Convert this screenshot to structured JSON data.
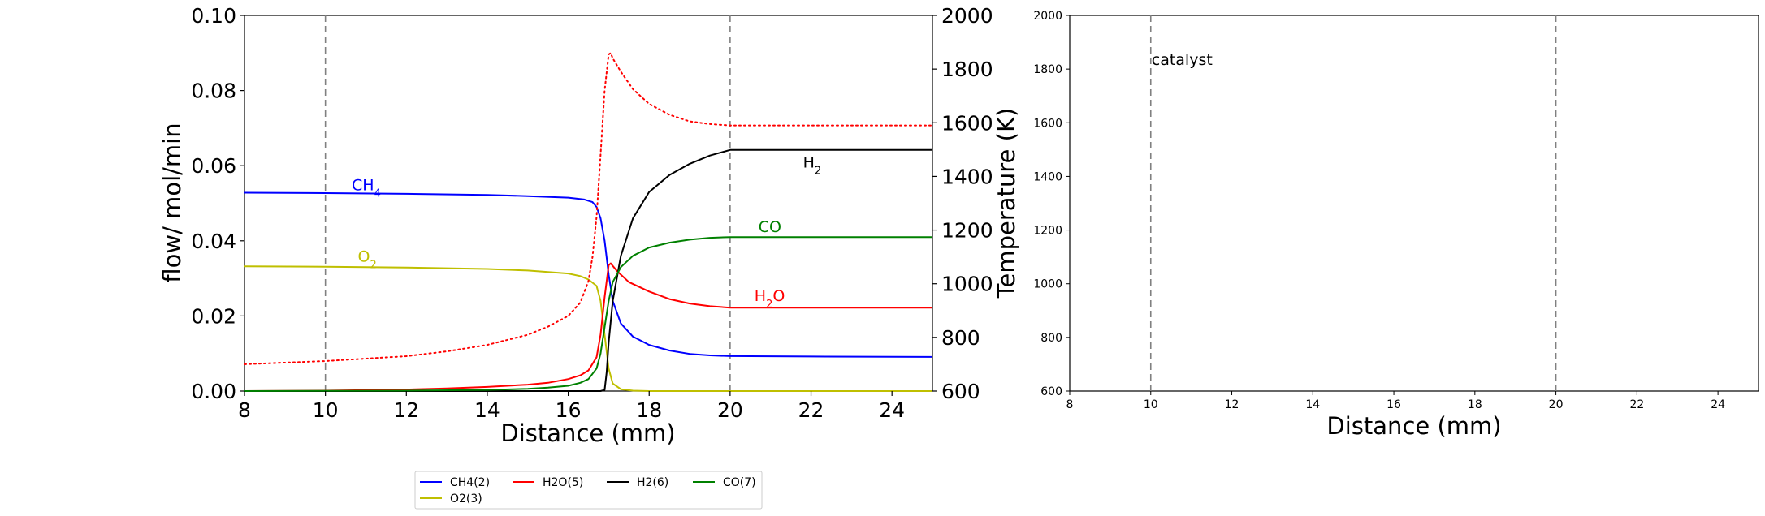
{
  "chart_data": [
    {
      "type": "line",
      "xlabel": "Distance (mm)",
      "ylabel": "flow/ mol/min",
      "y2label": "Temperature (K)",
      "xlim": [
        8,
        25
      ],
      "ylim": [
        0,
        0.1
      ],
      "y2lim": [
        600,
        2000
      ],
      "xticks": [
        "8",
        "10",
        "12",
        "14",
        "16",
        "18",
        "20",
        "22",
        "24"
      ],
      "yticks": [
        "0.00",
        "0.02",
        "0.04",
        "0.06",
        "0.08",
        "0.10"
      ],
      "y2ticks": [
        "600",
        "800",
        "1000",
        "1200",
        "1400",
        "1600",
        "1800",
        "2000"
      ],
      "vlines": [
        10,
        20
      ],
      "grid": false,
      "series": [
        {
          "key": "ch4",
          "color": "#0000ff",
          "x": [
            8,
            10,
            12,
            14,
            15,
            16,
            16.4,
            16.6,
            16.7,
            16.8,
            16.9,
            17.0,
            17.1,
            17.3,
            17.6,
            18.0,
            18.5,
            19.0,
            19.5,
            20,
            22,
            25
          ],
          "y": [
            0.0528,
            0.0527,
            0.0525,
            0.0522,
            0.0519,
            0.0515,
            0.051,
            0.0503,
            0.049,
            0.046,
            0.04,
            0.031,
            0.024,
            0.018,
            0.0145,
            0.0123,
            0.0108,
            0.0099,
            0.0095,
            0.0093,
            0.0092,
            0.0091
          ]
        },
        {
          "key": "o2",
          "color": "#bfbf00",
          "x": [
            8,
            10,
            12,
            14,
            15,
            16,
            16.3,
            16.5,
            16.7,
            16.8,
            16.9,
            17.0,
            17.1,
            17.3,
            17.6,
            18,
            20,
            25
          ],
          "y": [
            0.0332,
            0.0331,
            0.0329,
            0.0325,
            0.0321,
            0.0313,
            0.0306,
            0.0297,
            0.028,
            0.024,
            0.015,
            0.006,
            0.002,
            0.0005,
            0.0001,
            0,
            0,
            0
          ]
        },
        {
          "key": "h2o",
          "color": "#ff0000",
          "x": [
            8,
            10,
            12,
            13,
            14,
            15,
            15.5,
            16,
            16.3,
            16.5,
            16.7,
            16.8,
            16.9,
            17.0,
            17.05,
            17.2,
            17.5,
            18,
            18.5,
            19,
            19.5,
            20,
            22,
            25
          ],
          "y": [
            0,
            0.0001,
            0.0004,
            0.0007,
            0.0011,
            0.0017,
            0.0022,
            0.0032,
            0.0042,
            0.0055,
            0.009,
            0.015,
            0.025,
            0.0335,
            0.034,
            0.032,
            0.029,
            0.0265,
            0.0245,
            0.0233,
            0.0226,
            0.0222,
            0.0222,
            0.0222
          ]
        },
        {
          "key": "h2",
          "color": "#000000",
          "x": [
            8,
            16.8,
            16.9,
            16.95,
            17.0,
            17.1,
            17.3,
            17.6,
            18.0,
            18.5,
            19.0,
            19.5,
            20,
            22,
            25
          ],
          "y": [
            0,
            0,
            0.0003,
            0.005,
            0.013,
            0.024,
            0.036,
            0.046,
            0.053,
            0.0575,
            0.0605,
            0.0627,
            0.0642,
            0.0642,
            0.0642
          ]
        },
        {
          "key": "co",
          "color": "#008000",
          "x": [
            8,
            12,
            14,
            15,
            15.5,
            16,
            16.3,
            16.5,
            16.7,
            16.8,
            16.9,
            17.0,
            17.1,
            17.3,
            17.6,
            18.0,
            18.5,
            19,
            19.5,
            20,
            22,
            25
          ],
          "y": [
            0,
            0.0001,
            0.0003,
            0.0006,
            0.0009,
            0.0014,
            0.0022,
            0.0032,
            0.006,
            0.01,
            0.017,
            0.024,
            0.029,
            0.033,
            0.036,
            0.0382,
            0.0395,
            0.0403,
            0.0408,
            0.041,
            0.041,
            0.041
          ]
        },
        {
          "key": "temp",
          "color": "#ff0000",
          "axis": "right",
          "dotted": true,
          "x": [
            8,
            10,
            12,
            13,
            14,
            15,
            15.5,
            16,
            16.3,
            16.5,
            16.6,
            16.7,
            16.8,
            16.9,
            17.0,
            17.05,
            17.1,
            17.3,
            17.6,
            18.0,
            18.5,
            19.0,
            19.5,
            20,
            22,
            25
          ],
          "y": [
            700,
            712,
            730,
            748,
            772,
            810,
            840,
            880,
            930,
            1010,
            1100,
            1250,
            1480,
            1720,
            1855,
            1860,
            1840,
            1790,
            1725,
            1670,
            1630,
            1605,
            1595,
            1590,
            1590,
            1590
          ]
        }
      ],
      "annotations": [
        {
          "key": "ch4",
          "base": "CH",
          "sub": "4",
          "x": 10.65,
          "y": 0.0535,
          "color": "#0000ff"
        },
        {
          "key": "o2",
          "base": "O",
          "sub": "2",
          "x": 10.8,
          "y": 0.0345,
          "color": "#bfbf00"
        },
        {
          "key": "h2",
          "base": "H",
          "sub": "2",
          "x": 21.8,
          "y": 0.0595,
          "color": "#000000"
        },
        {
          "key": "co",
          "text": "CO",
          "x": 20.7,
          "y": 0.0423,
          "color": "#008000"
        },
        {
          "key": "h2o",
          "base": "H",
          "sub": "2",
          "tail": "O",
          "x": 20.6,
          "y": 0.024,
          "color": "#ff0000"
        }
      ],
      "legend": {
        "placement": "bottom-center",
        "entries": [
          {
            "label": "CH4(2)",
            "color": "#0000ff"
          },
          {
            "label": "H2O(5)",
            "color": "#ff0000"
          },
          {
            "label": "H2(6)",
            "color": "#000000"
          },
          {
            "label": "CO(7)",
            "color": "#008000"
          },
          {
            "label": "O2(3)",
            "color": "#bfbf00"
          }
        ]
      }
    },
    {
      "type": "line",
      "xlabel": "Distance (mm)",
      "xlim": [
        8,
        25
      ],
      "ylim": [
        600,
        2000
      ],
      "xticks": [
        "8",
        "10",
        "12",
        "14",
        "16",
        "18",
        "20",
        "22",
        "24"
      ],
      "yticks": [
        "600",
        "800",
        "1000",
        "1200",
        "1400",
        "1600",
        "1800",
        "2000"
      ],
      "vlines": [
        10,
        20
      ],
      "grid": false,
      "series": [],
      "annotation": {
        "text": "catalyst",
        "x": 10.0,
        "y": 1815
      }
    }
  ]
}
